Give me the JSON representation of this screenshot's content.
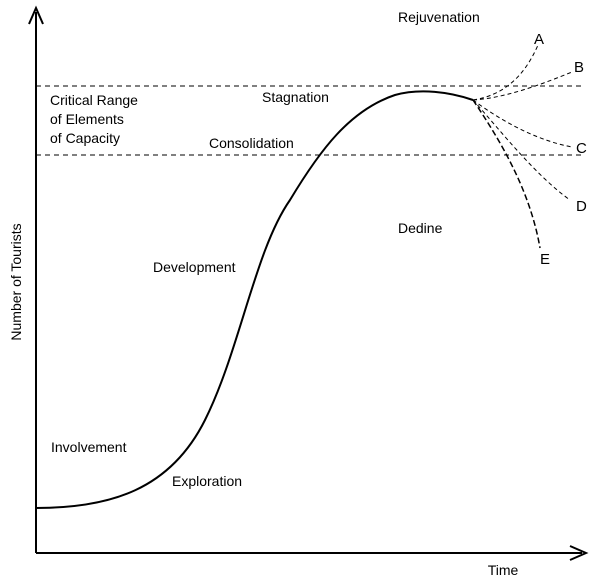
{
  "axes": {
    "y_label": "Number of Tourists",
    "x_label": "Time"
  },
  "capacity": {
    "label_lines": [
      "Critical Range",
      "of Elements",
      "of Capacity"
    ]
  },
  "stages": {
    "exploration": "Exploration",
    "involvement": "Involvement",
    "development": "Development",
    "consolidation": "Consolidation",
    "stagnation": "Stagnation",
    "rejuvenation": "Rejuvenation",
    "decline": "Dedine"
  },
  "branches": [
    "A",
    "B",
    "C",
    "D",
    "E"
  ],
  "colors": {
    "ink": "#000000",
    "background": "#ffffff"
  }
}
